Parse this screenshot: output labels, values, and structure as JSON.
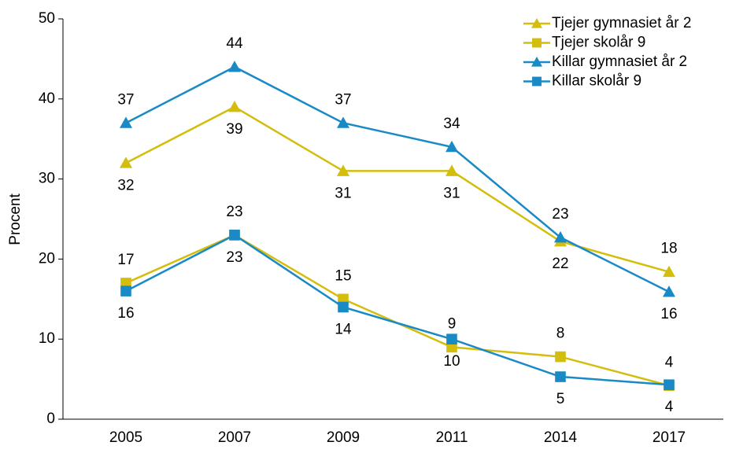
{
  "chart_data": {
    "type": "line",
    "y_label": "Procent",
    "categories": [
      "2005",
      "2007",
      "2009",
      "2011",
      "2014",
      "2017"
    ],
    "series": [
      {
        "name": "Tjejer gymnasiet år 2",
        "color": "#d4bd0c",
        "marker": "triangle",
        "values": [
          32,
          39,
          31,
          31,
          22.2,
          18.4
        ],
        "value_labels": [
          "32",
          "39",
          "31",
          "31",
          "22",
          "18"
        ]
      },
      {
        "name": "Tjejer skolår 9",
        "color": "#d4bd0c",
        "marker": "square",
        "values": [
          17,
          23,
          15,
          9,
          7.8,
          4.2
        ],
        "value_labels": [
          "17",
          "23",
          "15",
          "9",
          "8",
          "4"
        ]
      },
      {
        "name": "Killar gymnasiet år 2",
        "color": "#1a8ac6",
        "marker": "triangle",
        "values": [
          37,
          44,
          37,
          34,
          22.7,
          15.9
        ],
        "value_labels": [
          "37",
          "44",
          "37",
          "34",
          "23",
          "16"
        ]
      },
      {
        "name": "Killar skolår 9",
        "color": "#1a8ac6",
        "marker": "square",
        "values": [
          16,
          23,
          14,
          10,
          5.3,
          4.3
        ],
        "value_labels": [
          "16",
          "23",
          "14",
          "10",
          "5",
          "4"
        ]
      }
    ],
    "ylim": [
      0,
      50
    ],
    "yticks": [
      0,
      10,
      20,
      30,
      40,
      50
    ],
    "legend": "top-right"
  }
}
